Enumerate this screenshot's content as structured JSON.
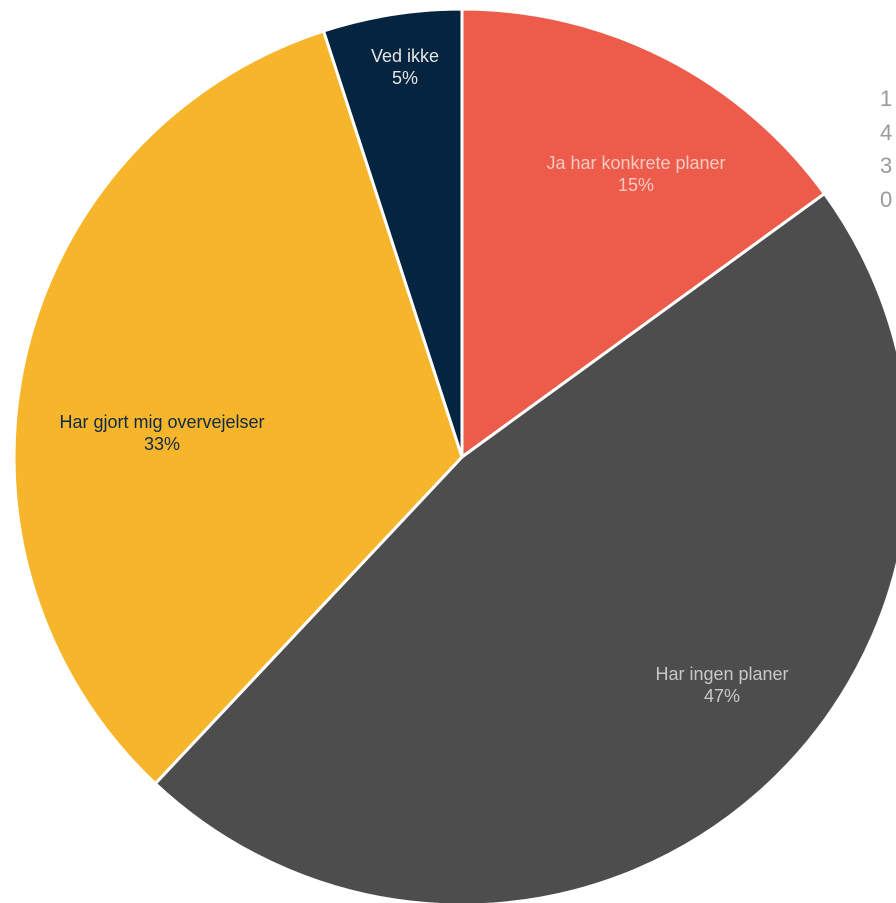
{
  "chart_data": {
    "type": "pie",
    "title": "",
    "slices": [
      {
        "label": "Ja har konkrete planer",
        "value": 15,
        "display": "15%",
        "color": "#ED5C4A",
        "label_color": "#F9C9C2"
      },
      {
        "label": "Har ingen planer",
        "value": 47,
        "display": "47%",
        "color": "#4D4D4D",
        "label_color": "#C8C8C8"
      },
      {
        "label": "Har gjort mig overvejelser",
        "value": 33,
        "display": "33%",
        "color": "#F7B52B",
        "label_color": "#0F2A45"
      },
      {
        "label": "Ved ikke",
        "value": 5,
        "display": "5%",
        "color": "#04243F",
        "label_color": "#E6E6E6"
      }
    ]
  },
  "side_values": [
    "1",
    "4",
    "3",
    "0"
  ],
  "colors": {
    "background": "#FFFFFF",
    "slice_border": "#FFFFFF"
  }
}
